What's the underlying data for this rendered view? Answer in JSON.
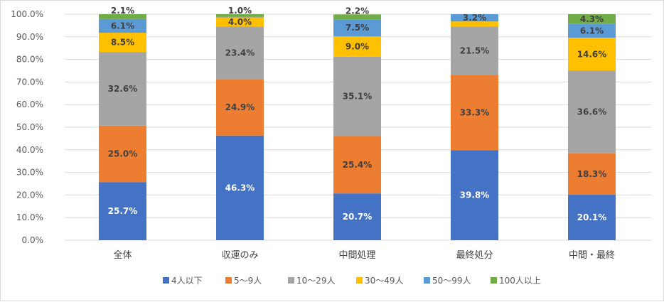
{
  "chart_data": {
    "type": "bar",
    "stacked": true,
    "categories": [
      "全体",
      "収運のみ",
      "中間処理",
      "最終処分",
      "中間・最終"
    ],
    "ylim": [
      0,
      100
    ],
    "yticks": [
      "0.0%",
      "10.0%",
      "20.0%",
      "30.0%",
      "40.0%",
      "50.0%",
      "60.0%",
      "70.0%",
      "80.0%",
      "90.0%",
      "100.0%"
    ],
    "grid": true,
    "legend_position": "bottom",
    "series": [
      {
        "name": "4人以下",
        "color": "#4472C4",
        "label_color": "#ffffff",
        "values": [
          25.7,
          46.3,
          20.7,
          39.8,
          20.1
        ],
        "labels": [
          "25.7%",
          "46.3%",
          "20.7%",
          "39.8%",
          "20.1%"
        ]
      },
      {
        "name": "5～9人",
        "color": "#ED7D31",
        "label_color": "#404040",
        "values": [
          25.0,
          24.9,
          25.4,
          33.3,
          18.3
        ],
        "labels": [
          "25.0%",
          "24.9%",
          "25.4%",
          "33.3%",
          "18.3%"
        ]
      },
      {
        "name": "10～29人",
        "color": "#A5A5A5",
        "label_color": "#404040",
        "values": [
          32.6,
          23.4,
          35.1,
          21.5,
          36.6
        ],
        "labels": [
          "32.6%",
          "23.4%",
          "35.1%",
          "21.5%",
          "36.6%"
        ]
      },
      {
        "name": "30～49人",
        "color": "#FFC000",
        "label_color": "#404040",
        "values": [
          8.5,
          4.0,
          9.0,
          2.2,
          14.6
        ],
        "labels": [
          "8.5%",
          "4.0%",
          "9.0%",
          "2.2%",
          "14.6%"
        ]
      },
      {
        "name": "50～99人",
        "color": "#5B9BD5",
        "label_color": "#404040",
        "values": [
          6.1,
          0.4,
          7.5,
          3.2,
          6.1
        ],
        "labels": [
          "6.1%",
          "",
          "7.5%",
          "3.2%",
          "6.1%"
        ]
      },
      {
        "name": "100人以上",
        "color": "#70AD47",
        "label_color": "#404040",
        "values": [
          2.1,
          1.0,
          2.2,
          0.0,
          4.3
        ],
        "labels": [
          "2.1%",
          "1.0%",
          "2.2%",
          "",
          "4.3%"
        ]
      }
    ]
  }
}
